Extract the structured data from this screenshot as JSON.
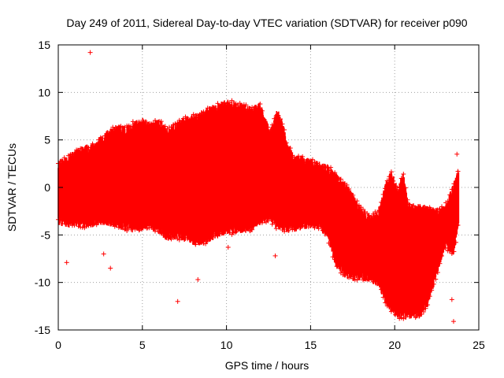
{
  "chart_data": {
    "type": "scatter",
    "title": "Day 249 of 2011, Sidereal Day-to-day VTEC variation (SDTVAR) for receiver p090",
    "xlabel": "GPS time / hours",
    "ylabel": "SDTVAR / TECUs",
    "xlim": [
      0,
      25
    ],
    "ylim": [
      -15,
      15
    ],
    "x_ticks": [
      0,
      5,
      10,
      15,
      20,
      25
    ],
    "y_ticks": [
      -15,
      -10,
      -5,
      0,
      5,
      10,
      15
    ],
    "x_tick_labels": [
      "0",
      "5",
      "10",
      "15",
      "20",
      "25"
    ],
    "y_tick_labels": [
      "-15",
      "-10",
      "-5",
      "0",
      "5",
      "10",
      "15"
    ],
    "grid": true,
    "grid_style": "dotted",
    "marker": "+",
    "series_color": "#ff0000",
    "series": [
      {
        "name": "SDTVAR p090",
        "description_upper_envelope": "upper bound of the dense point band",
        "upper_envelope": [
          [
            0.0,
            2.5
          ],
          [
            0.5,
            2.8
          ],
          [
            1.0,
            3.6
          ],
          [
            1.5,
            4.0
          ],
          [
            2.0,
            4.2
          ],
          [
            2.5,
            4.9
          ],
          [
            3.0,
            5.7
          ],
          [
            3.5,
            6.2
          ],
          [
            4.0,
            6.0
          ],
          [
            4.5,
            6.6
          ],
          [
            5.0,
            6.9
          ],
          [
            5.5,
            6.5
          ],
          [
            6.0,
            6.8
          ],
          [
            6.5,
            5.8
          ],
          [
            7.0,
            6.5
          ],
          [
            7.5,
            7.0
          ],
          [
            8.0,
            7.3
          ],
          [
            8.5,
            7.7
          ],
          [
            9.0,
            8.1
          ],
          [
            9.5,
            8.5
          ],
          [
            10.0,
            8.8
          ],
          [
            10.5,
            8.7
          ],
          [
            11.0,
            8.4
          ],
          [
            11.5,
            8.2
          ],
          [
            12.0,
            8.5
          ],
          [
            12.3,
            7.0
          ],
          [
            12.6,
            5.8
          ],
          [
            13.0,
            7.8
          ],
          [
            13.3,
            7.0
          ],
          [
            13.6,
            4.5
          ],
          [
            14.0,
            3.0
          ],
          [
            14.5,
            2.9
          ],
          [
            15.0,
            2.6
          ],
          [
            15.5,
            2.3
          ],
          [
            16.0,
            2.0
          ],
          [
            16.5,
            1.2
          ],
          [
            17.0,
            0.3
          ],
          [
            17.5,
            -1.0
          ],
          [
            18.0,
            -2.5
          ],
          [
            18.5,
            -3.3
          ],
          [
            19.0,
            -2.8
          ],
          [
            19.5,
            0.3
          ],
          [
            19.8,
            1.4
          ],
          [
            20.2,
            -0.5
          ],
          [
            20.5,
            1.4
          ],
          [
            20.8,
            -2.0
          ],
          [
            21.5,
            -2.2
          ],
          [
            22.0,
            -2.3
          ],
          [
            22.5,
            -2.6
          ],
          [
            23.0,
            -2.2
          ],
          [
            23.5,
            0.0
          ],
          [
            23.8,
            1.7
          ]
        ],
        "lower_envelope": [
          [
            0.0,
            -3.5
          ],
          [
            0.5,
            -3.8
          ],
          [
            1.0,
            -3.7
          ],
          [
            1.5,
            -4.0
          ],
          [
            2.0,
            -3.8
          ],
          [
            2.5,
            -3.5
          ],
          [
            3.0,
            -3.6
          ],
          [
            3.5,
            -3.9
          ],
          [
            4.0,
            -4.2
          ],
          [
            4.5,
            -4.3
          ],
          [
            5.0,
            -4.2
          ],
          [
            5.5,
            -4.0
          ],
          [
            6.0,
            -4.5
          ],
          [
            6.5,
            -5.2
          ],
          [
            7.0,
            -5.0
          ],
          [
            7.5,
            -5.3
          ],
          [
            8.0,
            -5.6
          ],
          [
            8.5,
            -5.8
          ],
          [
            9.0,
            -5.3
          ],
          [
            9.5,
            -4.8
          ],
          [
            10.0,
            -4.6
          ],
          [
            10.5,
            -4.5
          ],
          [
            11.0,
            -4.4
          ],
          [
            11.5,
            -4.3
          ],
          [
            12.0,
            -3.5
          ],
          [
            12.5,
            -3.2
          ],
          [
            13.0,
            -4.0
          ],
          [
            13.5,
            -4.3
          ],
          [
            14.0,
            -4.3
          ],
          [
            14.5,
            -4.0
          ],
          [
            15.0,
            -3.9
          ],
          [
            15.5,
            -4.0
          ],
          [
            16.0,
            -5.0
          ],
          [
            16.5,
            -8.0
          ],
          [
            17.0,
            -9.0
          ],
          [
            17.5,
            -9.5
          ],
          [
            18.0,
            -9.3
          ],
          [
            18.5,
            -9.6
          ],
          [
            19.0,
            -10.0
          ],
          [
            19.5,
            -12.0
          ],
          [
            20.0,
            -13.3
          ],
          [
            20.5,
            -13.5
          ],
          [
            21.0,
            -13.4
          ],
          [
            21.5,
            -13.4
          ],
          [
            22.0,
            -12.0
          ],
          [
            22.5,
            -9.0
          ],
          [
            23.0,
            -6.0
          ],
          [
            23.5,
            -7.0
          ],
          [
            23.8,
            -3.5
          ]
        ],
        "outliers": [
          [
            1.9,
            14.2
          ],
          [
            7.1,
            -12.0
          ],
          [
            8.3,
            -9.7
          ],
          [
            23.5,
            -14.1
          ],
          [
            3.1,
            -8.5
          ],
          [
            0.5,
            -7.9
          ],
          [
            23.4,
            -11.8
          ],
          [
            23.7,
            3.5
          ],
          [
            12.9,
            -7.2
          ],
          [
            10.1,
            -6.3
          ],
          [
            2.7,
            -7.0
          ]
        ]
      }
    ]
  }
}
